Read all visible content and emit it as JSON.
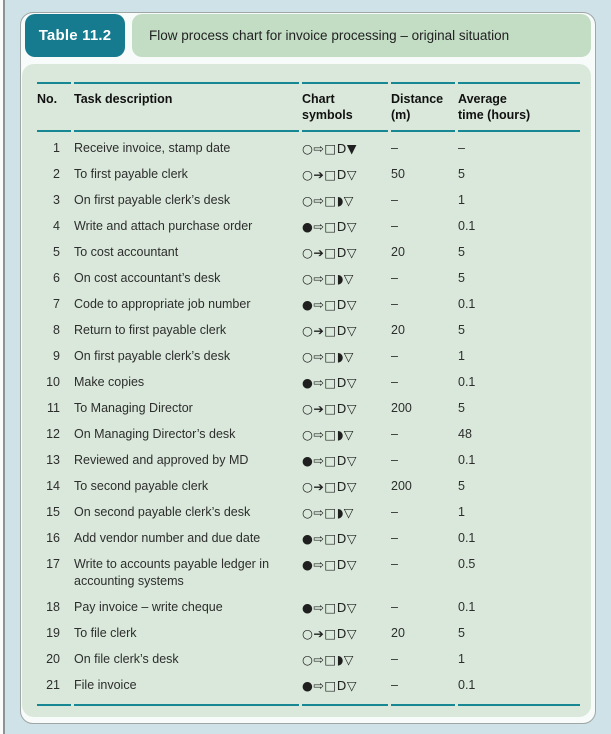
{
  "colors": {
    "page_bg": "#cfe2e7",
    "card_bg": "#f7fbf9",
    "card_border": "#9fa6a6",
    "badge_bg": "#177b90",
    "badge_text": "#ffffff",
    "title_strip_bg": "#c3ddc5",
    "panel_bg": "#d9e8da",
    "rule": "#178893",
    "text": "#2d2d2d",
    "heading_text": "#111111"
  },
  "header": {
    "label": "Table 11.2",
    "title": "Flow process chart for invoice processing – original situation"
  },
  "table": {
    "columns": [
      {
        "label": "No."
      },
      {
        "label": "Task description"
      },
      {
        "label": "Chart\nsymbols"
      },
      {
        "label": "Distance\n(m)"
      },
      {
        "label": "Average\ntime (hours)"
      }
    ],
    "rows": [
      {
        "no": "1",
        "task": "Receive invoice, stamp date",
        "symbols": "○⇨□D▼",
        "distance": "–",
        "time": "–"
      },
      {
        "no": "2",
        "task": "To first payable clerk",
        "symbols": "○➔□D▽",
        "distance": "50",
        "time": "5"
      },
      {
        "no": "3",
        "task": "On first payable clerk’s desk",
        "symbols": "○⇨□◗▽",
        "distance": "–",
        "time": "1"
      },
      {
        "no": "4",
        "task": "Write and attach purchase order",
        "symbols": "●⇨□D▽",
        "distance": "–",
        "time": "0.1"
      },
      {
        "no": "5",
        "task": "To cost accountant",
        "symbols": "○➔□D▽",
        "distance": "20",
        "time": "5"
      },
      {
        "no": "6",
        "task": "On cost accountant’s desk",
        "symbols": "○⇨□◗▽",
        "distance": "–",
        "time": "5"
      },
      {
        "no": "7",
        "task": "Code to appropriate job number",
        "symbols": "●⇨□D▽",
        "distance": "–",
        "time": "0.1"
      },
      {
        "no": "8",
        "task": "Return to first payable clerk",
        "symbols": "○➔□D▽",
        "distance": "20",
        "time": "5"
      },
      {
        "no": "9",
        "task": "On first payable clerk’s desk",
        "symbols": "○⇨□◗▽",
        "distance": "–",
        "time": "1"
      },
      {
        "no": "10",
        "task": "Make copies",
        "symbols": "●⇨□D▽",
        "distance": "–",
        "time": "0.1"
      },
      {
        "no": "11",
        "task": "To Managing Director",
        "symbols": "○➔□D▽",
        "distance": "200",
        "time": "5"
      },
      {
        "no": "12",
        "task": "On Managing Director’s desk",
        "symbols": "○⇨□◗▽",
        "distance": "–",
        "time": "48"
      },
      {
        "no": "13",
        "task": "Reviewed and approved by MD",
        "symbols": "●⇨□D▽",
        "distance": "–",
        "time": "0.1"
      },
      {
        "no": "14",
        "task": "To second payable clerk",
        "symbols": "○➔□D▽",
        "distance": "200",
        "time": "5"
      },
      {
        "no": "15",
        "task": "On second payable clerk’s desk",
        "symbols": "○⇨□◗▽",
        "distance": "–",
        "time": "1"
      },
      {
        "no": "16",
        "task": "Add vendor number and due date",
        "symbols": "●⇨□D▽",
        "distance": "–",
        "time": "0.1"
      },
      {
        "no": "17",
        "task": "Write to accounts payable ledger in\naccounting systems",
        "symbols": "●⇨□D▽",
        "distance": "–",
        "time": "0.5"
      },
      {
        "no": "18",
        "task": "Pay invoice – write cheque",
        "symbols": "●⇨□D▽",
        "distance": "–",
        "time": "0.1"
      },
      {
        "no": "19",
        "task": "To file clerk",
        "symbols": "○➔□D▽",
        "distance": "20",
        "time": "5"
      },
      {
        "no": "20",
        "task": "On file clerk’s desk",
        "symbols": "○⇨□◗▽",
        "distance": "–",
        "time": "1"
      },
      {
        "no": "21",
        "task": "File invoice",
        "symbols": "●⇨□D▽",
        "distance": "–",
        "time": "0.1"
      }
    ]
  }
}
